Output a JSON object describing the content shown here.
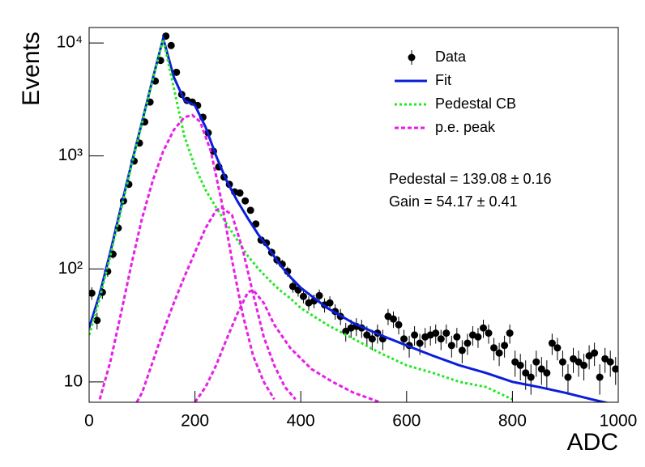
{
  "chart_data": {
    "type": "log_fit",
    "x_label": "ADC",
    "y_label": "Events",
    "xlim": [
      0,
      1000
    ],
    "xticks": [
      0,
      200,
      400,
      600,
      800,
      1000
    ],
    "ylim": [
      6.6,
      13700
    ],
    "log_y": true,
    "yticks": [
      10,
      {
        "value": 100,
        "label": "10²"
      },
      {
        "value": 1000,
        "label": "10³"
      },
      {
        "value": 10000,
        "label": "10⁴"
      }
    ],
    "annotations": [
      "Pedestal = 139.08 ± 0.16",
      "Gain = 54.17 ± 0.41"
    ],
    "legend": "top-right",
    "series": [
      {
        "name": "Data",
        "style": "points",
        "color": "#000000",
        "x": [
          5,
          15,
          25,
          35,
          45,
          55,
          65,
          75,
          85,
          95,
          105,
          115,
          125,
          135,
          145,
          155,
          165,
          175,
          185,
          195,
          205,
          215,
          225,
          235,
          245,
          255,
          265,
          275,
          285,
          295,
          305,
          315,
          325,
          335,
          345,
          355,
          365,
          375,
          385,
          395,
          405,
          415,
          425,
          435,
          445,
          455,
          465,
          475,
          485,
          495,
          505,
          515,
          525,
          535,
          545,
          555,
          565,
          575,
          585,
          595,
          605,
          615,
          625,
          635,
          645,
          655,
          665,
          675,
          685,
          695,
          705,
          715,
          725,
          735,
          745,
          755,
          765,
          775,
          785,
          795,
          805,
          815,
          825,
          835,
          845,
          855,
          865,
          875,
          885,
          895,
          905,
          915,
          925,
          935,
          945,
          955,
          965,
          975,
          985,
          995
        ],
        "values": [
          61,
          35,
          62,
          95,
          135,
          230,
          400,
          560,
          900,
          1300,
          2000,
          3000,
          4600,
          7000,
          11500,
          9500,
          5500,
          3500,
          3100,
          3000,
          2800,
          2200,
          1600,
          1100,
          800,
          650,
          560,
          480,
          470,
          400,
          330,
          250,
          180,
          170,
          140,
          120,
          110,
          95,
          70,
          65,
          57,
          50,
          52,
          58,
          48,
          50,
          42,
          38,
          28,
          30,
          31,
          30,
          26,
          24,
          27,
          24,
          38,
          36,
          32,
          24,
          21,
          26,
          22,
          25,
          26,
          27,
          24,
          27,
          21,
          25,
          19,
          22,
          26,
          25,
          30,
          27,
          20,
          18,
          21,
          27,
          15,
          14,
          12,
          11,
          15,
          13,
          12,
          22,
          20,
          15,
          11,
          16,
          15,
          14,
          17,
          18,
          11,
          16,
          15,
          13
        ],
        "errors": [
          7.8,
          5.9,
          7.9,
          9.7,
          11.6,
          15.2,
          20,
          23.7,
          30,
          36,
          44.7,
          54.8,
          67.8,
          83.7,
          107,
          97.5,
          74.2,
          59.2,
          55.7,
          54.8,
          52.9,
          46.9,
          40,
          33.2,
          28.3,
          25.5,
          23.7,
          21.9,
          21.7,
          20,
          18.2,
          15.8,
          13.4,
          13,
          11.8,
          11,
          10.5,
          9.7,
          8.4,
          8.1,
          7.5,
          7.1,
          7.2,
          7.6,
          6.9,
          7.1,
          6.5,
          6.2,
          5.3,
          5.5,
          5.6,
          5.5,
          5.1,
          4.9,
          5.2,
          4.9,
          6.2,
          6,
          5.7,
          4.9,
          4.6,
          5.1,
          4.7,
          5,
          5.1,
          5.2,
          4.9,
          5.2,
          4.6,
          5,
          4.4,
          4.7,
          5.1,
          5,
          5.5,
          5.2,
          4.5,
          4.2,
          4.6,
          5.2,
          3.9,
          3.7,
          3.5,
          3.3,
          3.9,
          3.6,
          3.5,
          4.7,
          4.5,
          3.9,
          3.3,
          4,
          3.9,
          3.7,
          4.1,
          4.2,
          3.3,
          4,
          3.9,
          3.6
        ]
      },
      {
        "name": "Fit",
        "style": "solid",
        "color": "#0b1ed8",
        "x": [
          0,
          20,
          40,
          60,
          80,
          100,
          120,
          140,
          160,
          180,
          200,
          220,
          240,
          260,
          280,
          300,
          320,
          340,
          360,
          380,
          400,
          450,
          500,
          550,
          600,
          650,
          700,
          750,
          800,
          850,
          900,
          950,
          980
        ],
        "values": [
          30,
          60,
          140,
          350,
          850,
          2000,
          4800,
          11000,
          5000,
          3100,
          2800,
          1800,
          1000,
          600,
          400,
          280,
          200,
          150,
          110,
          85,
          68,
          45,
          33,
          26,
          21,
          17,
          14,
          12,
          10,
          9,
          8,
          7,
          6.5
        ]
      },
      {
        "name": "Pedestal CB",
        "style": "dotted",
        "color": "#22e822",
        "x": [
          0,
          20,
          40,
          60,
          80,
          100,
          120,
          140,
          160,
          180,
          200,
          220,
          240,
          260,
          280,
          300,
          320,
          340,
          360,
          380,
          400,
          450,
          500,
          550,
          600,
          650,
          700,
          750,
          800
        ],
        "values": [
          26,
          55,
          130,
          330,
          820,
          1950,
          4700,
          10800,
          4000,
          1500,
          800,
          500,
          350,
          250,
          180,
          130,
          100,
          80,
          65,
          55,
          45,
          32,
          24,
          18,
          14,
          12,
          10,
          9,
          7
        ]
      },
      {
        "name": "p.e. peak",
        "style": "dashed",
        "color": "#e81ee8",
        "curves": [
          {
            "x": [
              20,
              40,
              60,
              80,
              100,
              120,
              140,
              160,
              180,
              195,
              210,
              230,
              250,
              270,
              290,
              310,
              330,
              350
            ],
            "values": [
              7,
              15,
              40,
              110,
              280,
              600,
              1100,
              1700,
              2200,
              2300,
              2000,
              1100,
              400,
              120,
              40,
              17,
              10,
              7
            ]
          },
          {
            "x": [
              90,
              100,
              120,
              140,
              160,
              180,
              200,
              220,
              240,
              250,
              270,
              290,
              310,
              330,
              350,
              370,
              390
            ],
            "values": [
              6.6,
              8,
              15,
              28,
              50,
              85,
              140,
              230,
              330,
              350,
              300,
              150,
              60,
              25,
              14,
              9,
              7
            ]
          },
          {
            "x": [
              200,
              220,
              240,
              260,
              280,
              300,
              310,
              330,
              350,
              380,
              420,
              460,
              500,
              550
            ],
            "values": [
              6.6,
              9,
              14,
              24,
              40,
              62,
              65,
              50,
              32,
              20,
              13,
              10,
              8,
              6.6
            ]
          }
        ]
      }
    ]
  }
}
